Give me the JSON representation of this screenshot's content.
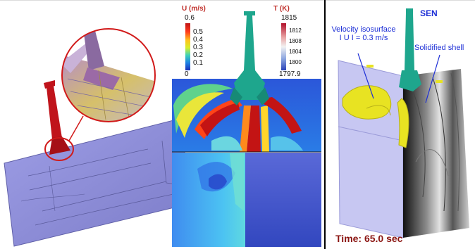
{
  "colorbar_velocity": {
    "title": "U (m/s)",
    "ticks": [
      "0.6",
      "0.5",
      "0.4",
      "0.3",
      "0.2",
      "0.1",
      "0"
    ]
  },
  "colorbar_temperature": {
    "title": "T (K)",
    "max": "1815",
    "ticks": [
      "1812",
      "1808",
      "1804",
      "1800"
    ],
    "min": "1797.9"
  },
  "annotations": {
    "sen": "SEN",
    "velocity_isosurface_line1": "Velocity isosurface",
    "velocity_isosurface_line2": "I U I = 0.3 m/s",
    "solidified_shell": "Solidified shell",
    "time": "Time: 65.0 sec"
  },
  "colors": {
    "nozzle_red": "#c0141b",
    "nozzle_teal": "#1ea68d",
    "mold_purple": "#8f8fdc",
    "isosurface_yellow": "#e8e322",
    "annotation_blue": "#1d2fd6",
    "time_label": "#8b1512"
  }
}
